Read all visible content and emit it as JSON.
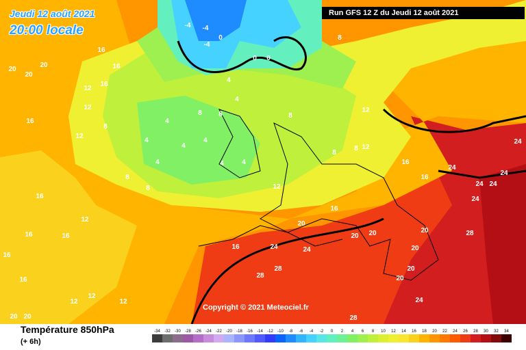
{
  "header": {
    "date_line": "Jeudi 12 août 2021",
    "time_line": "20:00 locale",
    "run_line": "Run GFS 12 Z du Jeudi 12 août 2021"
  },
  "copyright": "Copyright © 2021 Meteociel.fr",
  "footer": {
    "parameter": "Température 850hPa",
    "step": "(+ 6h)"
  },
  "legend": {
    "ticks": [
      "-34",
      "-32",
      "-30",
      "-28",
      "-26",
      "-24",
      "-22",
      "-20",
      "-18",
      "-16",
      "-14",
      "-12",
      "-10",
      "-8",
      "-6",
      "-4",
      "-2",
      "0",
      "2",
      "4",
      "6",
      "8",
      "10",
      "12",
      "14",
      "16",
      "18",
      "20",
      "22",
      "24",
      "26",
      "28",
      "30",
      "32",
      "34"
    ],
    "colors": [
      "#3c3c3c",
      "#6e6e6e",
      "#8c6e8c",
      "#9c5aa6",
      "#b46ec8",
      "#c88cdc",
      "#d2aaf0",
      "#aab4ff",
      "#8c96ff",
      "#6e78ff",
      "#505aff",
      "#323cff",
      "#0a64ff",
      "#1e8cff",
      "#32b4ff",
      "#46d2ff",
      "#5ae6e6",
      "#64f0be",
      "#6ef096",
      "#82f064",
      "#9ef050",
      "#bef03c",
      "#dcf032",
      "#f0f032",
      "#fae632",
      "#fad21e",
      "#ffb400",
      "#ff9600",
      "#ff7800",
      "#ff5a00",
      "#f03c14",
      "#d21e1e",
      "#b40f14",
      "#820a0a",
      "#3c0000"
    ]
  },
  "map_labels": [
    {
      "t": "16"
    },
    {
      "t": "20"
    },
    {
      "t": "20"
    },
    {
      "t": "20"
    },
    {
      "t": "16"
    },
    {
      "t": "16"
    },
    {
      "t": "12"
    },
    {
      "t": "16"
    },
    {
      "t": "12"
    },
    {
      "t": "8"
    },
    {
      "t": "16"
    },
    {
      "t": "12"
    },
    {
      "t": "8"
    },
    {
      "t": "8"
    },
    {
      "t": "4"
    },
    {
      "t": "4"
    },
    {
      "t": "4"
    },
    {
      "t": "4"
    },
    {
      "t": "4"
    },
    {
      "t": "4"
    },
    {
      "t": "4"
    },
    {
      "t": "8"
    },
    {
      "t": "8"
    },
    {
      "t": "4"
    },
    {
      "t": "-4"
    },
    {
      "t": "-4"
    },
    {
      "t": "0"
    },
    {
      "t": "0"
    },
    {
      "t": "-4"
    },
    {
      "t": "0"
    },
    {
      "t": "4"
    },
    {
      "t": "8"
    },
    {
      "t": "8"
    },
    {
      "t": "8"
    },
    {
      "t": "12"
    },
    {
      "t": "12"
    },
    {
      "t": "8"
    },
    {
      "t": "12"
    },
    {
      "t": "16"
    },
    {
      "t": "16"
    },
    {
      "t": "24"
    },
    {
      "t": "20"
    },
    {
      "t": "24"
    },
    {
      "t": "24"
    },
    {
      "t": "24"
    },
    {
      "t": "24"
    },
    {
      "t": "28"
    },
    {
      "t": "20"
    },
    {
      "t": "20"
    },
    {
      "t": "20"
    },
    {
      "t": "20"
    },
    {
      "t": "24"
    },
    {
      "t": "24"
    },
    {
      "t": "28"
    },
    {
      "t": "28"
    },
    {
      "t": "16"
    },
    {
      "t": "16"
    },
    {
      "t": "16"
    },
    {
      "t": "16"
    },
    {
      "t": "12"
    },
    {
      "t": "12"
    },
    {
      "t": "12"
    },
    {
      "t": "20"
    },
    {
      "t": "20"
    },
    {
      "t": "24"
    },
    {
      "t": "24"
    },
    {
      "t": "28"
    },
    {
      "t": "16"
    },
    {
      "t": "12"
    },
    {
      "t": "16"
    },
    {
      "t": "20"
    },
    {
      "t": "20"
    }
  ]
}
